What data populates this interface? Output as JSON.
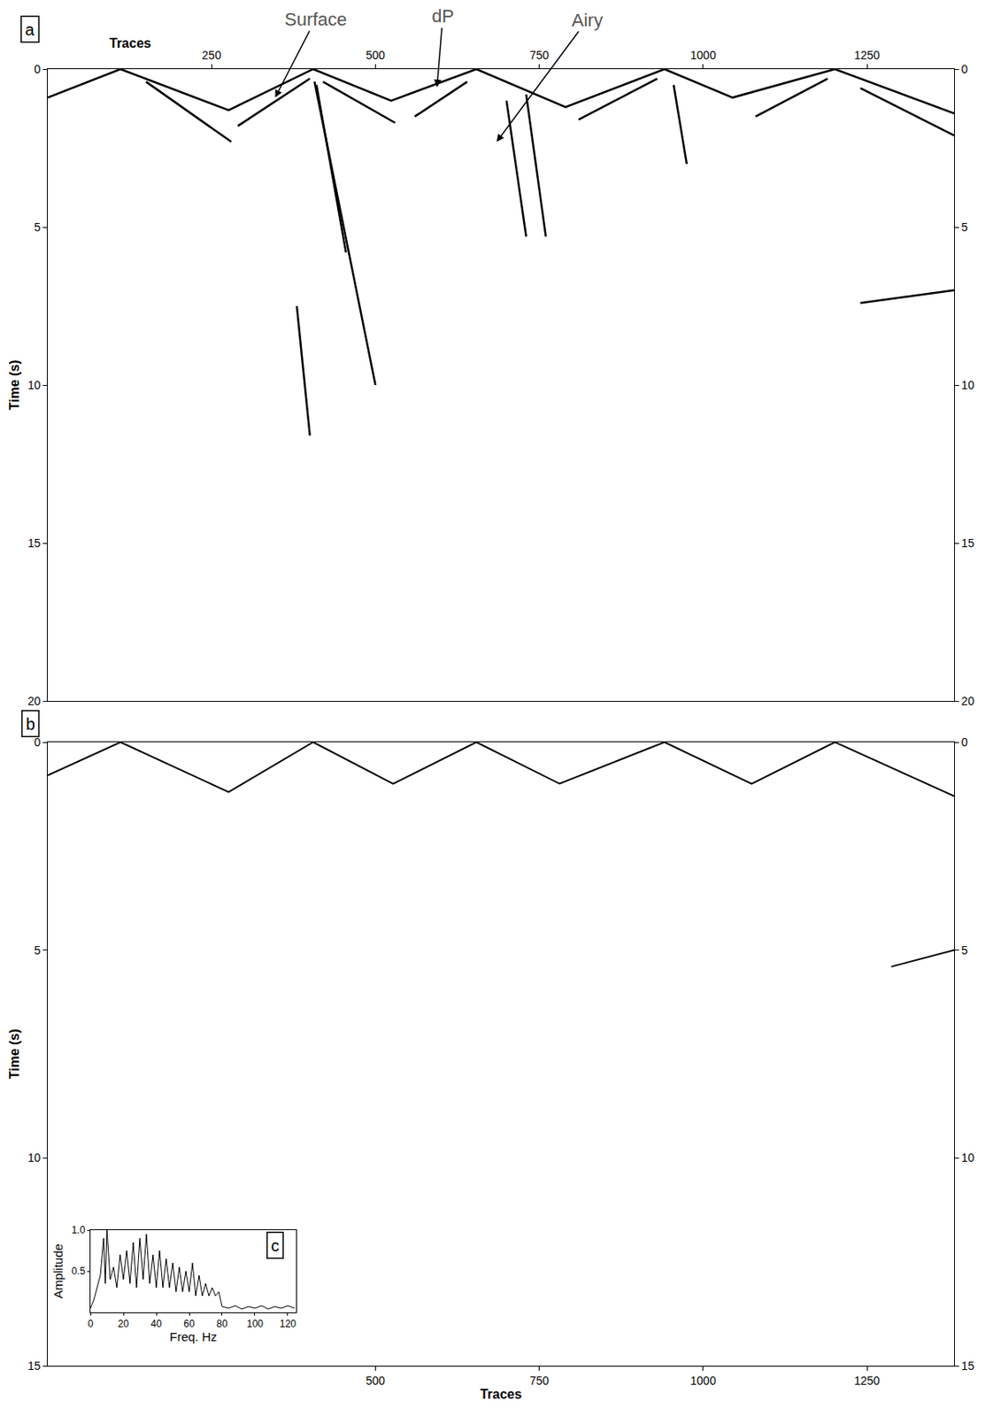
{
  "chart_data": [
    {
      "type": "line",
      "title": "a",
      "x_label": "Traces",
      "y_label": "Time (s)",
      "xlim": [
        0,
        1383
      ],
      "ylim": [
        20,
        0
      ],
      "xticks": [
        250,
        500,
        750,
        1000,
        1250
      ],
      "yticks": [
        0,
        5,
        10,
        15,
        20
      ],
      "grid": false,
      "series": [
        {
          "x": [
            0,
            111,
            276,
            405,
            524,
            654,
            790,
            941,
            1045,
            1201,
            1383
          ],
          "values": [
            0.9,
            0,
            1.3,
            0,
            1.0,
            0,
            1.2,
            0,
            0.9,
            0,
            1.4
          ],
          "color": "#000000",
          "line_style": "solid"
        },
        {
          "x": [
            150,
            280,
            null,
            290,
            400,
            null,
            420,
            530,
            null,
            560,
            640,
            null,
            810,
            930,
            null,
            1080,
            1190,
            null,
            1240,
            1383
          ],
          "values": [
            0.4,
            2.3,
            null,
            1.8,
            0.3,
            null,
            0.4,
            1.7,
            null,
            1.5,
            0.4,
            null,
            1.6,
            0.3,
            null,
            1.5,
            0.3,
            null,
            0.6,
            2.1
          ],
          "color": "#000000",
          "line_style": "solid"
        },
        {
          "x": [
            410,
            455,
            null,
            407,
            500,
            null,
            700,
            730,
            null,
            730,
            760,
            null,
            955,
            975,
            null,
            380,
            400,
            null,
            1240,
            1383
          ],
          "values": [
            0.5,
            5.8,
            null,
            0.4,
            10.0,
            null,
            1.0,
            5.3,
            null,
            0.8,
            5.3,
            null,
            0.5,
            3.0,
            null,
            7.5,
            11.6,
            null,
            7.4,
            7.0
          ],
          "color": "#000000",
          "line_style": "solid"
        }
      ],
      "annotations": [
        {
          "text": "Surface",
          "x": 347,
          "y": 0.9
        },
        {
          "text": "dP",
          "x": 594,
          "y": 0.57
        },
        {
          "text": "Airy",
          "x": 685,
          "y": 2.3
        }
      ]
    },
    {
      "type": "line",
      "title": "b",
      "x_label": "Traces",
      "y_label": "Time (s)",
      "xlim": [
        0,
        1383
      ],
      "ylim": [
        15,
        0
      ],
      "xticks": [
        500,
        750,
        1000,
        1250
      ],
      "yticks": [
        0,
        5,
        10,
        15
      ],
      "grid": false,
      "series": [
        {
          "x": [
            0,
            111,
            276,
            405,
            527,
            654,
            781,
            941,
            1074,
            1201,
            1383
          ],
          "values": [
            0.8,
            0,
            1.2,
            0,
            1.0,
            0,
            1.0,
            0,
            1.0,
            0,
            1.3
          ],
          "color": "#000000",
          "line_style": "solid"
        },
        {
          "x": [
            1287,
            1383
          ],
          "values": [
            5.4,
            5.0
          ],
          "color": "#000000",
          "line_style": "solid"
        }
      ]
    },
    {
      "type": "line",
      "title": "c",
      "x_label": "Freq. Hz",
      "y_label": "Amplitude",
      "xlim": [
        0,
        125
      ],
      "ylim": [
        0,
        1
      ],
      "xticks": [
        0,
        20,
        40,
        60,
        80,
        100,
        120
      ],
      "yticks": [
        0.5,
        {
          "value": 1,
          "label": "1.0"
        }
      ],
      "grid": false,
      "series": [
        {
          "x": [
            0,
            2,
            4,
            6,
            8,
            9,
            10,
            12,
            14,
            16,
            18,
            20,
            22,
            24,
            26,
            28,
            30,
            32,
            34,
            36,
            38,
            40,
            42,
            44,
            46,
            48,
            50,
            52,
            54,
            56,
            58,
            60,
            62,
            64,
            66,
            68,
            70,
            72,
            74,
            76,
            78,
            80,
            84,
            88,
            92,
            96,
            100,
            104,
            108,
            112,
            116,
            120,
            124
          ],
          "values": [
            0.05,
            0.15,
            0.3,
            0.45,
            0.9,
            0.35,
            1.0,
            0.4,
            0.55,
            0.3,
            0.7,
            0.4,
            0.75,
            0.35,
            0.85,
            0.3,
            0.9,
            0.4,
            0.95,
            0.35,
            0.7,
            0.3,
            0.75,
            0.3,
            0.65,
            0.3,
            0.6,
            0.25,
            0.55,
            0.25,
            0.5,
            0.25,
            0.6,
            0.2,
            0.45,
            0.2,
            0.35,
            0.2,
            0.3,
            0.2,
            0.25,
            0.07,
            0.05,
            0.08,
            0.04,
            0.07,
            0.05,
            0.08,
            0.04,
            0.07,
            0.05,
            0.08,
            0.05
          ],
          "color": "#000000",
          "line_style": "solid"
        }
      ]
    }
  ]
}
